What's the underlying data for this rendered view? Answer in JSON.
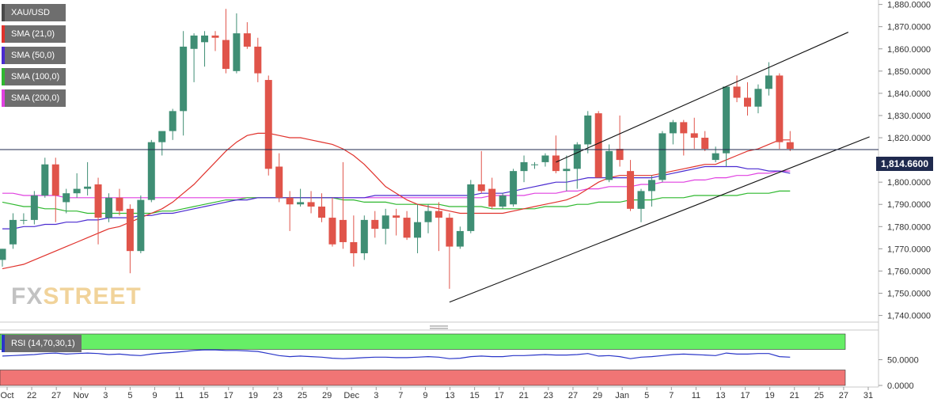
{
  "legend": [
    {
      "label": "XAU/USD",
      "color": "#4a4a4a"
    },
    {
      "label": "SMA (21,0)",
      "color": "#e0322c"
    },
    {
      "label": "SMA (50,0)",
      "color": "#4a2ad0"
    },
    {
      "label": "SMA (100,0)",
      "color": "#2eb82e"
    },
    {
      "label": "SMA (200,0)",
      "color": "#e040e0"
    }
  ],
  "rsi_label": "RSI (14,70,30,1)",
  "current_price": "1,814.6600",
  "logo": {
    "part1": "FX",
    "part2": "STREET"
  },
  "chart_data": {
    "type": "candlestick",
    "symbol": "XAU/USD",
    "ylim": [
      1737,
      1882
    ],
    "y_ticks": [
      "1,880.0000",
      "1,870.0000",
      "1,860.0000",
      "1,850.0000",
      "1,840.0000",
      "1,830.0000",
      "1,820.0000",
      "1,810.0000",
      "1,800.0000",
      "1,790.0000",
      "1,780.0000",
      "1,770.0000",
      "1,760.0000",
      "1,750.0000",
      "1,740.0000"
    ],
    "x_ticks": [
      "Oct",
      "22",
      "27",
      "Nov",
      "3",
      "5",
      "9",
      "11",
      "15",
      "17",
      "19",
      "23",
      "25",
      "29",
      "Dec",
      "3",
      "7",
      "9",
      "13",
      "15",
      "17",
      "21",
      "23",
      "27",
      "29",
      "Jan",
      "5",
      "7",
      "11",
      "13",
      "17",
      "19",
      "21",
      "25",
      "27",
      "31"
    ],
    "current_price": 1814.66,
    "candles": [
      {
        "o": 1765,
        "h": 1770,
        "l": 1762,
        "c": 1770
      },
      {
        "o": 1772,
        "h": 1786,
        "l": 1770,
        "c": 1783
      },
      {
        "o": 1783,
        "h": 1786,
        "l": 1781,
        "c": 1783
      },
      {
        "o": 1783,
        "h": 1796,
        "l": 1781,
        "c": 1794
      },
      {
        "o": 1794,
        "h": 1811,
        "l": 1793,
        "c": 1808
      },
      {
        "o": 1808,
        "h": 1811,
        "l": 1782,
        "c": 1794
      },
      {
        "o": 1791,
        "h": 1797,
        "l": 1786,
        "c": 1795
      },
      {
        "o": 1795,
        "h": 1804,
        "l": 1793,
        "c": 1797
      },
      {
        "o": 1797,
        "h": 1809,
        "l": 1794,
        "c": 1798
      },
      {
        "o": 1799,
        "h": 1802,
        "l": 1772,
        "c": 1784
      },
      {
        "o": 1784,
        "h": 1795,
        "l": 1782,
        "c": 1793
      },
      {
        "o": 1793,
        "h": 1797,
        "l": 1785,
        "c": 1787
      },
      {
        "o": 1788,
        "h": 1790,
        "l": 1759,
        "c": 1769
      },
      {
        "o": 1769,
        "h": 1794,
        "l": 1768,
        "c": 1792
      },
      {
        "o": 1792,
        "h": 1819,
        "l": 1791,
        "c": 1818
      },
      {
        "o": 1818,
        "h": 1822,
        "l": 1812,
        "c": 1823
      },
      {
        "o": 1823,
        "h": 1833,
        "l": 1819,
        "c": 1832
      },
      {
        "o": 1832,
        "h": 1868,
        "l": 1821,
        "c": 1861
      },
      {
        "o": 1860,
        "h": 1867,
        "l": 1845,
        "c": 1866
      },
      {
        "o": 1863,
        "h": 1868,
        "l": 1852,
        "c": 1866
      },
      {
        "o": 1866,
        "h": 1868,
        "l": 1859,
        "c": 1865
      },
      {
        "o": 1864,
        "h": 1878,
        "l": 1849,
        "c": 1851
      },
      {
        "o": 1850,
        "h": 1876,
        "l": 1849,
        "c": 1867
      },
      {
        "o": 1867,
        "h": 1872,
        "l": 1860,
        "c": 1861
      },
      {
        "o": 1861,
        "h": 1865,
        "l": 1845,
        "c": 1849
      },
      {
        "o": 1846,
        "h": 1848,
        "l": 1803,
        "c": 1806
      },
      {
        "o": 1807,
        "h": 1813,
        "l": 1791,
        "c": 1793
      },
      {
        "o": 1793,
        "h": 1796,
        "l": 1778,
        "c": 1790
      },
      {
        "o": 1790,
        "h": 1797,
        "l": 1789,
        "c": 1791
      },
      {
        "o": 1791,
        "h": 1796,
        "l": 1786,
        "c": 1789
      },
      {
        "o": 1789,
        "h": 1795,
        "l": 1782,
        "c": 1784
      },
      {
        "o": 1784,
        "h": 1793,
        "l": 1771,
        "c": 1772
      },
      {
        "o": 1783,
        "h": 1809,
        "l": 1770,
        "c": 1773
      },
      {
        "o": 1773,
        "h": 1785,
        "l": 1762,
        "c": 1768
      },
      {
        "o": 1768,
        "h": 1785,
        "l": 1765,
        "c": 1783
      },
      {
        "o": 1783,
        "h": 1787,
        "l": 1775,
        "c": 1779
      },
      {
        "o": 1779,
        "h": 1788,
        "l": 1772,
        "c": 1785
      },
      {
        "o": 1785,
        "h": 1788,
        "l": 1776,
        "c": 1784
      },
      {
        "o": 1784,
        "h": 1787,
        "l": 1774,
        "c": 1775
      },
      {
        "o": 1775,
        "h": 1790,
        "l": 1768,
        "c": 1782
      },
      {
        "o": 1782,
        "h": 1790,
        "l": 1777,
        "c": 1787
      },
      {
        "o": 1787,
        "h": 1791,
        "l": 1769,
        "c": 1784
      },
      {
        "o": 1784,
        "h": 1786,
        "l": 1752,
        "c": 1771
      },
      {
        "o": 1771,
        "h": 1780,
        "l": 1770,
        "c": 1778
      },
      {
        "o": 1778,
        "h": 1801,
        "l": 1777,
        "c": 1799
      },
      {
        "o": 1799,
        "h": 1814,
        "l": 1795,
        "c": 1796
      },
      {
        "o": 1797,
        "h": 1802,
        "l": 1788,
        "c": 1789
      },
      {
        "o": 1789,
        "h": 1795,
        "l": 1788,
        "c": 1794
      },
      {
        "o": 1790,
        "h": 1806,
        "l": 1789,
        "c": 1805
      },
      {
        "o": 1805,
        "h": 1812,
        "l": 1800,
        "c": 1809
      },
      {
        "o": 1808,
        "h": 1809,
        "l": 1806,
        "c": 1808
      },
      {
        "o": 1809,
        "h": 1813,
        "l": 1807,
        "c": 1812
      },
      {
        "o": 1812,
        "h": 1821,
        "l": 1804,
        "c": 1805
      },
      {
        "o": 1805,
        "h": 1812,
        "l": 1796,
        "c": 1806
      },
      {
        "o": 1806,
        "h": 1818,
        "l": 1797,
        "c": 1817
      },
      {
        "o": 1817,
        "h": 1832,
        "l": 1813,
        "c": 1830
      },
      {
        "o": 1831,
        "h": 1832,
        "l": 1802,
        "c": 1802
      },
      {
        "o": 1801,
        "h": 1817,
        "l": 1800,
        "c": 1814
      },
      {
        "o": 1815,
        "h": 1830,
        "l": 1807,
        "c": 1810
      },
      {
        "o": 1805,
        "h": 1810,
        "l": 1787,
        "c": 1788
      },
      {
        "o": 1788,
        "h": 1797,
        "l": 1782,
        "c": 1796
      },
      {
        "o": 1796,
        "h": 1803,
        "l": 1789,
        "c": 1801
      },
      {
        "o": 1801,
        "h": 1823,
        "l": 1800,
        "c": 1822
      },
      {
        "o": 1822,
        "h": 1828,
        "l": 1817,
        "c": 1827
      },
      {
        "o": 1827,
        "h": 1828,
        "l": 1812,
        "c": 1822
      },
      {
        "o": 1822,
        "h": 1829,
        "l": 1815,
        "c": 1820
      },
      {
        "o": 1820,
        "h": 1823,
        "l": 1814,
        "c": 1815
      },
      {
        "o": 1810,
        "h": 1816,
        "l": 1809,
        "c": 1813
      },
      {
        "o": 1813,
        "h": 1843,
        "l": 1807,
        "c": 1843
      },
      {
        "o": 1843,
        "h": 1848,
        "l": 1836,
        "c": 1838
      },
      {
        "o": 1838,
        "h": 1845,
        "l": 1830,
        "c": 1834
      },
      {
        "o": 1834,
        "h": 1844,
        "l": 1831,
        "c": 1842
      },
      {
        "o": 1842,
        "h": 1854,
        "l": 1839,
        "c": 1848
      },
      {
        "o": 1848,
        "h": 1849,
        "l": 1815,
        "c": 1818
      },
      {
        "o": 1818,
        "h": 1823,
        "l": 1814,
        "c": 1815
      }
    ],
    "sma_21": [
      1761,
      1762,
      1763,
      1765,
      1767,
      1769,
      1771,
      1773,
      1775,
      1777,
      1779,
      1780,
      1782,
      1784,
      1786,
      1788,
      1791,
      1795,
      1799,
      1804,
      1809,
      1814,
      1818,
      1821,
      1822,
      1822,
      1821,
      1820,
      1820,
      1819,
      1818,
      1817,
      1815,
      1812,
      1808,
      1803,
      1798,
      1795,
      1792,
      1790,
      1789,
      1788,
      1787,
      1786,
      1786,
      1786,
      1786,
      1786,
      1787,
      1788,
      1789,
      1790,
      1791,
      1792,
      1794,
      1797,
      1800,
      1802,
      1803,
      1803,
      1803,
      1803,
      1804,
      1805,
      1806,
      1807,
      1808,
      1808,
      1810,
      1812,
      1814,
      1815,
      1817,
      1819,
      1819
    ],
    "sma_50": [
      1779,
      1779,
      1780,
      1780,
      1781,
      1781,
      1782,
      1782,
      1783,
      1783,
      1784,
      1784,
      1784,
      1785,
      1785,
      1786,
      1786,
      1787,
      1788,
      1789,
      1790,
      1791,
      1792,
      1792,
      1793,
      1793,
      1793,
      1793,
      1793,
      1793,
      1793,
      1793,
      1793,
      1793,
      1793,
      1794,
      1794,
      1794,
      1794,
      1794,
      1794,
      1794,
      1794,
      1794,
      1794,
      1795,
      1795,
      1795,
      1796,
      1797,
      1798,
      1799,
      1800,
      1800,
      1801,
      1802,
      1802,
      1802,
      1802,
      1802,
      1802,
      1802,
      1803,
      1804,
      1805,
      1806,
      1807,
      1807,
      1807,
      1807,
      1806,
      1806,
      1805,
      1805,
      1804
    ],
    "sma_100": [
      1791,
      1790,
      1789,
      1789,
      1788,
      1788,
      1787,
      1787,
      1786,
      1786,
      1786,
      1786,
      1786,
      1786,
      1786,
      1787,
      1787,
      1788,
      1789,
      1790,
      1791,
      1792,
      1792,
      1793,
      1793,
      1793,
      1793,
      1793,
      1793,
      1793,
      1793,
      1793,
      1792,
      1792,
      1791,
      1791,
      1791,
      1790,
      1790,
      1790,
      1790,
      1790,
      1789,
      1789,
      1789,
      1789,
      1788,
      1788,
      1788,
      1788,
      1788,
      1789,
      1789,
      1789,
      1790,
      1790,
      1791,
      1791,
      1791,
      1792,
      1792,
      1792,
      1793,
      1793,
      1793,
      1794,
      1794,
      1794,
      1794,
      1794,
      1795,
      1795,
      1795,
      1796,
      1796
    ],
    "sma_200": [
      1795,
      1795,
      1794,
      1794,
      1794,
      1794,
      1793,
      1793,
      1793,
      1793,
      1793,
      1793,
      1793,
      1793,
      1793,
      1793,
      1793,
      1793,
      1793,
      1793,
      1793,
      1793,
      1793,
      1793,
      1793,
      1793,
      1793,
      1793,
      1793,
      1793,
      1793,
      1793,
      1793,
      1793,
      1793,
      1793,
      1793,
      1793,
      1793,
      1793,
      1793,
      1793,
      1793,
      1793,
      1793,
      1793,
      1794,
      1794,
      1794,
      1794,
      1795,
      1795,
      1795,
      1796,
      1796,
      1797,
      1797,
      1798,
      1798,
      1798,
      1799,
      1799,
      1800,
      1800,
      1800,
      1801,
      1801,
      1802,
      1802,
      1803,
      1803,
      1804,
      1804,
      1805,
      1805
    ],
    "channel_upper": [
      [
        52,
        1809
      ],
      [
        75,
        1858
      ]
    ],
    "channel_lower": [
      [
        42,
        1746
      ],
      [
        77,
        1812
      ]
    ],
    "rsi": [
      57,
      58,
      59,
      60,
      62,
      63,
      61,
      62,
      63,
      62,
      60,
      61,
      59,
      58,
      61,
      63,
      64,
      66,
      68,
      69,
      69,
      68,
      68,
      67,
      66,
      62,
      58,
      56,
      57,
      56,
      55,
      53,
      52,
      53,
      54,
      55,
      55,
      54,
      54,
      55,
      56,
      55,
      52,
      53,
      56,
      57,
      56,
      56,
      58,
      58,
      59,
      60,
      59,
      59,
      60,
      62,
      57,
      58,
      56,
      52,
      55,
      56,
      58,
      60,
      61,
      60,
      59,
      58,
      63,
      61,
      61,
      62,
      62,
      56,
      55
    ],
    "rsi_levels": {
      "overbought": 70,
      "oversold": 30,
      "mid": 50
    },
    "rsi_y_ticks": [
      "50.0000",
      "0.0000"
    ],
    "rsi_ylim": [
      0,
      100
    ]
  }
}
